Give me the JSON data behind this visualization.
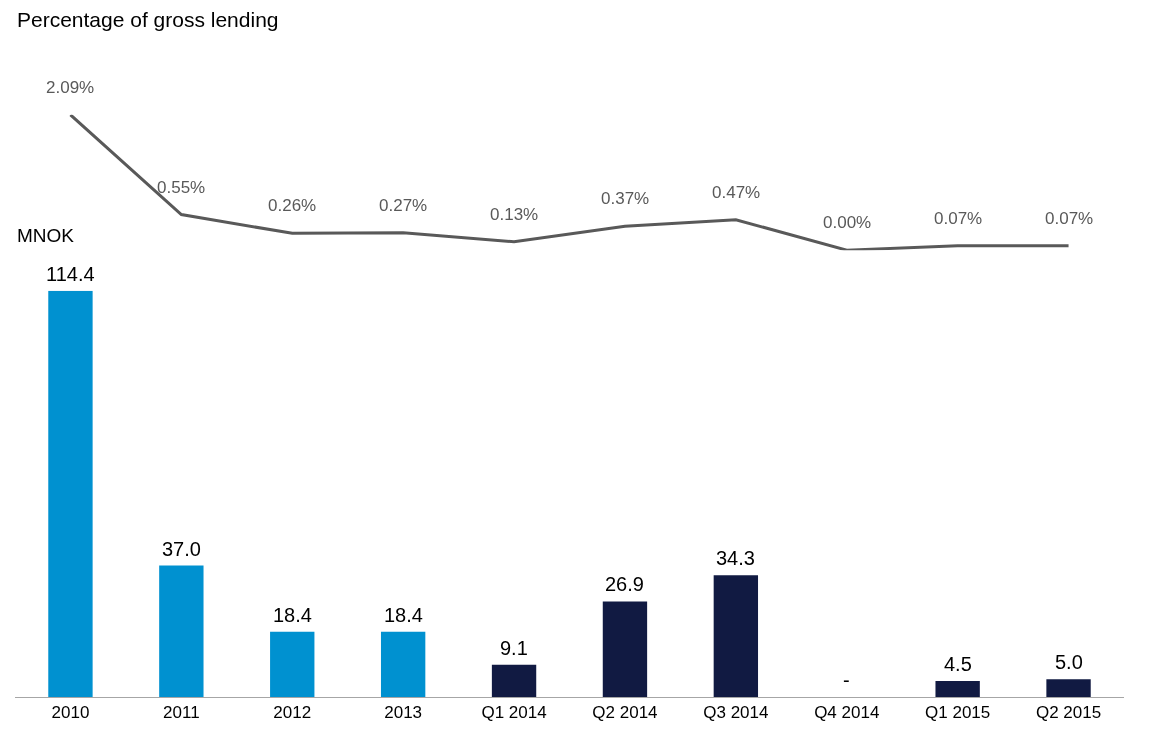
{
  "chart_data": [
    {
      "type": "line",
      "title": "Percentage of gross lending",
      "categories": [
        null,
        null,
        null,
        null,
        null,
        null,
        null,
        null,
        null,
        null
      ],
      "series": [
        {
          "color": "#595959",
          "values": [
            2.09,
            0.55,
            0.26,
            0.27,
            0.13,
            0.37,
            0.47,
            0.0,
            0.07,
            0.07
          ],
          "value_labels": [
            "2.09%",
            "0.55%",
            "0.26%",
            "0.27%",
            "0.13%",
            "0.37%",
            "0.47%",
            "0.00%",
            "0.07%",
            "0.07%"
          ]
        }
      ],
      "marker": "none",
      "line_style": "solid",
      "tick_labels": false
    },
    {
      "type": "bar",
      "title": "MNOK",
      "categories": [
        "2010",
        "2011",
        "2012",
        "2013",
        "Q1 2014",
        "Q2 2014",
        "Q3 2014",
        "Q4 2014",
        "Q1 2015",
        "Q2 2015"
      ],
      "series": [
        {
          "values": [
            114.4,
            37.0,
            18.4,
            18.4,
            9.1,
            26.9,
            34.3,
            0,
            4.5,
            5.0
          ],
          "colors": [
            "#0091d0",
            "#0091d0",
            "#0091d0",
            "#0091d0",
            "#111a42",
            "#111a42",
            "#111a42",
            "#111a42",
            "#111a42",
            "#111a42"
          ],
          "value_labels": [
            "114.4",
            "37.0",
            "18.4",
            "18.4",
            "9.1",
            "26.9",
            "34.3",
            "-",
            "4.5",
            "5.0"
          ]
        }
      ],
      "tick_labels": "x"
    }
  ]
}
